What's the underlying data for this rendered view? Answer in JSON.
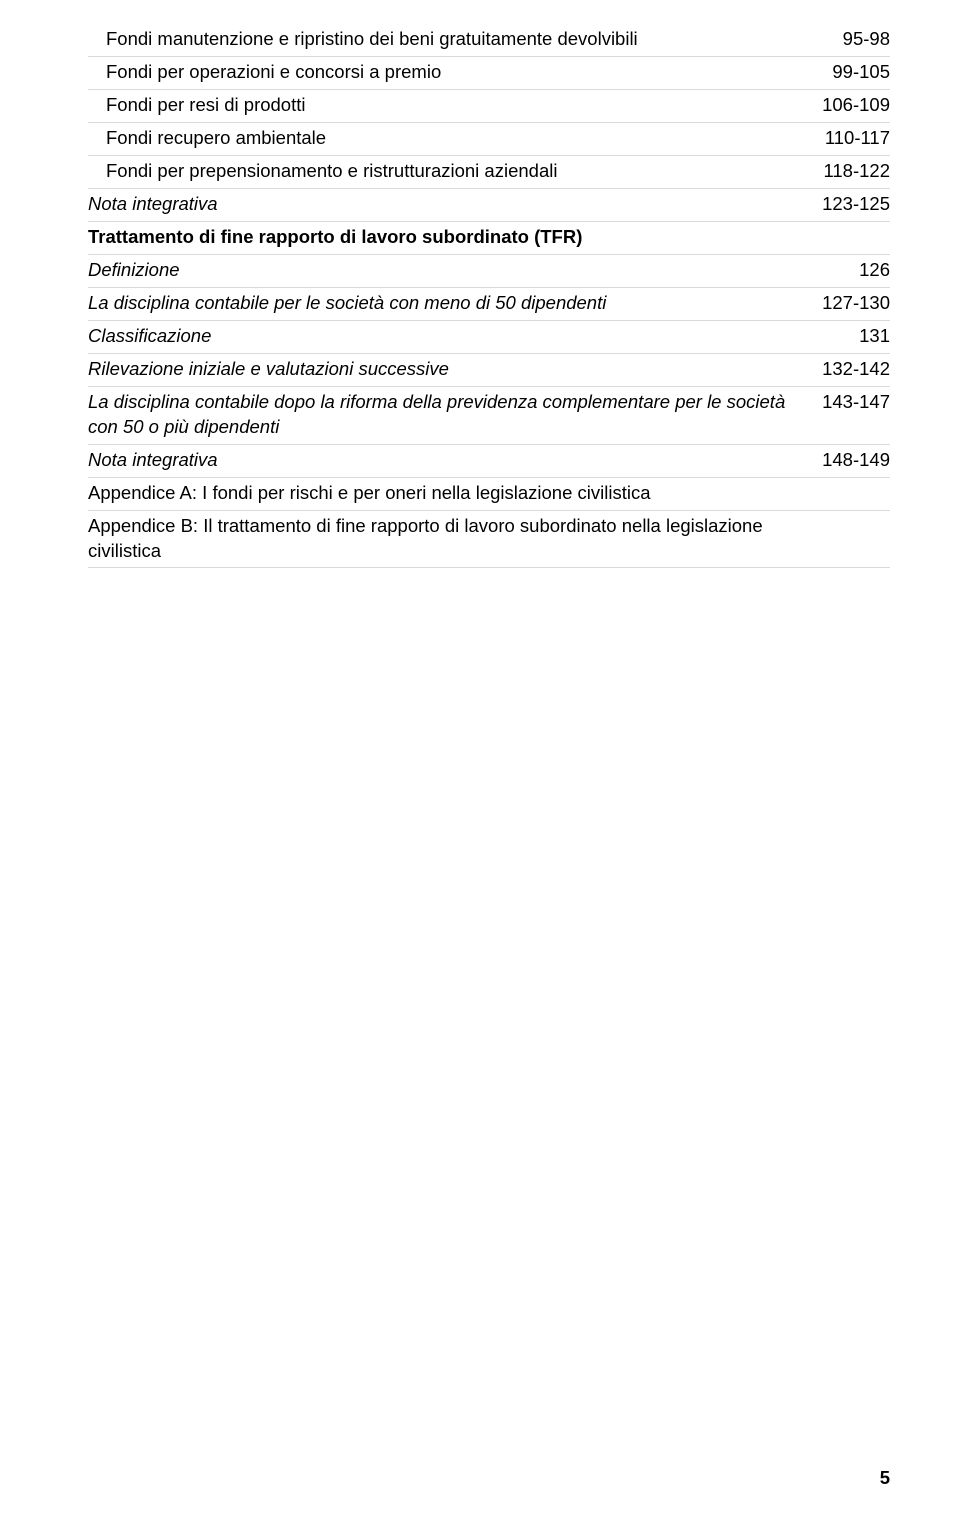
{
  "rows": [
    {
      "label": "Fondi manutenzione e ripristino dei beni gratuitamente devolvibili",
      "value": "95-98",
      "indent": 1,
      "italic": false,
      "bold": false
    },
    {
      "label": "Fondi per operazioni e concorsi a premio",
      "value": "99-105",
      "indent": 1,
      "italic": false,
      "bold": false
    },
    {
      "label": "Fondi per resi di prodotti",
      "value": "106-109",
      "indent": 1,
      "italic": false,
      "bold": false
    },
    {
      "label": "Fondi recupero ambientale",
      "value": "110-117",
      "indent": 1,
      "italic": false,
      "bold": false
    },
    {
      "label": "Fondi per prepensionamento e ristrutturazioni aziendali",
      "value": "118-122",
      "indent": 1,
      "italic": false,
      "bold": false
    },
    {
      "label": "Nota integrativa",
      "value": "123-125",
      "indent": 0,
      "italic": true,
      "bold": false
    },
    {
      "label": "Trattamento di fine rapporto di lavoro subordinato (TFR)",
      "value": "",
      "indent": 0,
      "italic": false,
      "bold": true
    },
    {
      "label": "Definizione",
      "value": "126",
      "indent": 0,
      "italic": true,
      "bold": false
    },
    {
      "label": "La disciplina contabile per le società con meno di 50 dipendenti",
      "value": "127-130",
      "indent": 0,
      "italic": true,
      "bold": false
    },
    {
      "label": "Classificazione",
      "value": "131",
      "indent": 0,
      "italic": true,
      "bold": false
    },
    {
      "label": "Rilevazione iniziale e valutazioni successive",
      "value": "132-142",
      "indent": 0,
      "italic": true,
      "bold": false
    },
    {
      "label": "La disciplina contabile dopo la riforma della previdenza complementare per le società con 50 o più dipendenti",
      "value": "143-147",
      "indent": 0,
      "italic": true,
      "bold": false
    },
    {
      "label": "Nota integrativa",
      "value": "148-149",
      "indent": 0,
      "italic": true,
      "bold": false
    },
    {
      "label": "Appendice A: I fondi per rischi e per oneri nella legislazione civilistica",
      "value": "",
      "indent": 0,
      "italic": false,
      "bold": false
    },
    {
      "label": "Appendice B: Il trattamento di fine rapporto di lavoro subordinato nella legislazione civilistica",
      "value": "",
      "indent": 0,
      "italic": false,
      "bold": false
    }
  ],
  "pageNumber": "5"
}
